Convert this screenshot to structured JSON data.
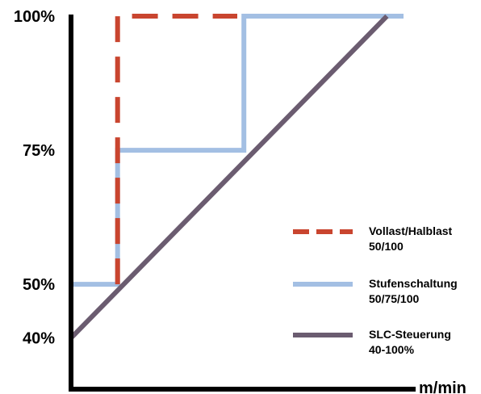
{
  "chart_data": {
    "type": "line",
    "title": "",
    "xlabel": "m/min",
    "ylabel": "",
    "xlim": [
      0,
      100
    ],
    "ylim": [
      30,
      100
    ],
    "yticks": [
      {
        "value": 100,
        "label": "100%"
      },
      {
        "value": 75,
        "label": "75%"
      },
      {
        "value": 50,
        "label": "50%"
      },
      {
        "value": 40,
        "label": "40%"
      }
    ],
    "grid": false,
    "legend_placement": "right",
    "series": [
      {
        "id": "vollast",
        "name_lines": [
          "Vollast/Halblast",
          "50/100"
        ],
        "color": "#c9452f",
        "style": "dashed",
        "x": [
          14.0,
          14.0,
          14.0,
          50.0
        ],
        "y": [
          50,
          75,
          100,
          100
        ]
      },
      {
        "id": "stufen",
        "name_lines": [
          "Stufenschaltung",
          "50/75/100"
        ],
        "color": "#a3bfe3",
        "style": "solid",
        "x": [
          0.0,
          14.0,
          14.0,
          52.0,
          52.0,
          100.0
        ],
        "y": [
          50,
          50,
          75,
          75,
          100,
          100
        ]
      },
      {
        "id": "slc",
        "name_lines": [
          "SLC-Steuerung",
          "40-100%"
        ],
        "color": "#6b5c70",
        "style": "solid",
        "x": [
          0.0,
          95.0
        ],
        "y": [
          40,
          100
        ]
      }
    ]
  }
}
